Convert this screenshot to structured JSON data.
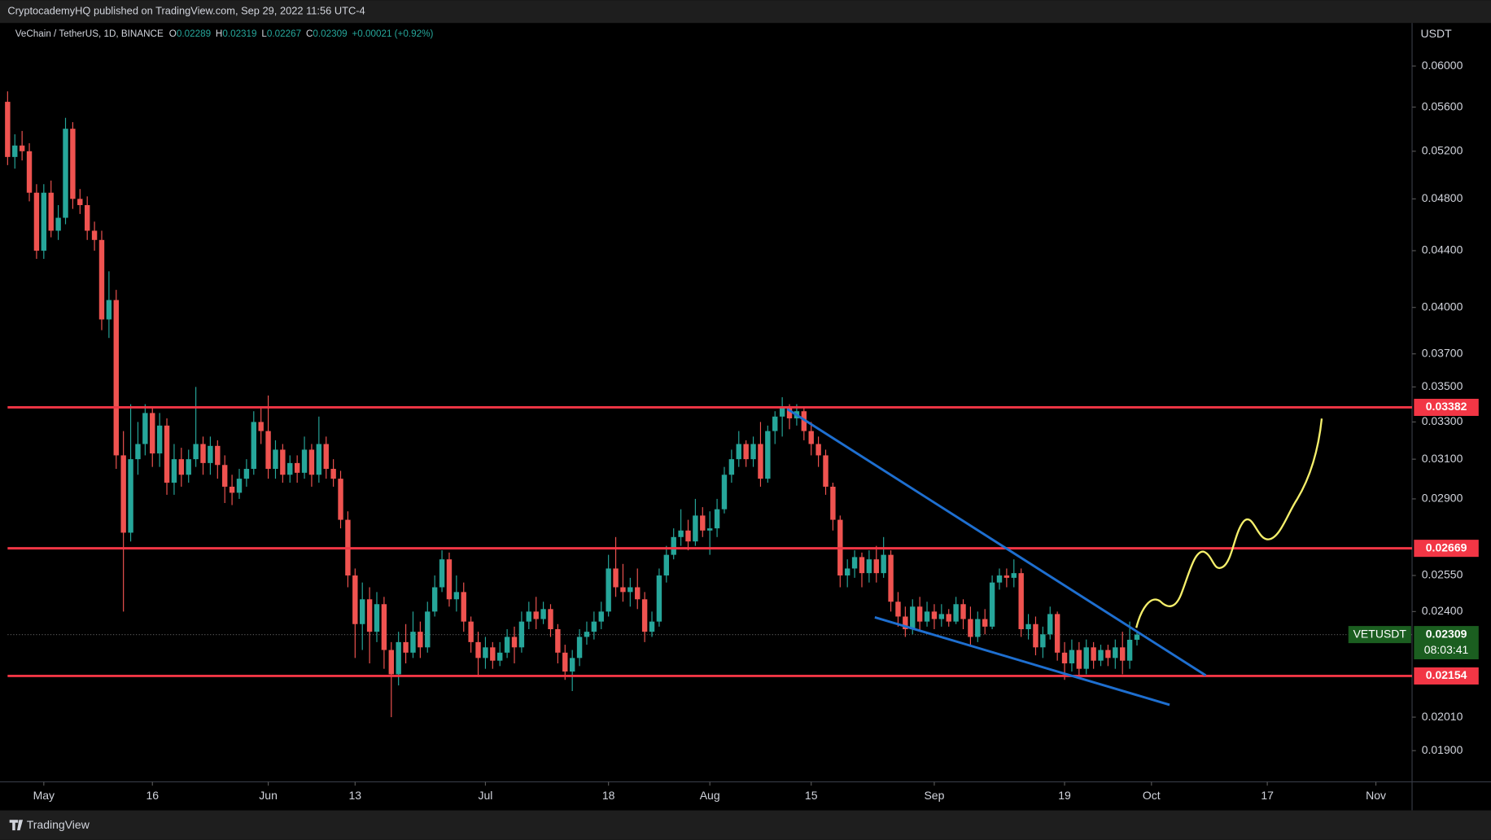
{
  "header": "CryptocademyHQ published on TradingView.com, Sep 29, 2022 11:56 UTC-4",
  "footer": "TradingView",
  "chart_data": {
    "type": "candlestick",
    "symbol": "VeChain / TetherUS, 1D, BINANCE",
    "legend_fields": [
      "O",
      "H",
      "L",
      "C"
    ],
    "change": "+0.00021 (+0.92%)",
    "price_unit": "USDT",
    "last_symbol": "VETUSDT",
    "countdown": "08:03:41",
    "up_color": "#26a69a",
    "down_color": "#ef5350",
    "level_color": "#f23645",
    "log_scale": true,
    "grid": false,
    "levels": [
      0.03382,
      0.02669,
      0.02154
    ],
    "xlim": [
      "2022-04-26",
      "2022-11-06"
    ],
    "xticks": [
      {
        "value": "2022-05-01",
        "label": "May"
      },
      {
        "value": "2022-05-16",
        "label": "16"
      },
      {
        "value": "2022-06-01",
        "label": "Jun"
      },
      {
        "value": "2022-06-13",
        "label": "13"
      },
      {
        "value": "2022-07-01",
        "label": "Jul"
      },
      {
        "value": "2022-07-18",
        "label": "18"
      },
      {
        "value": "2022-08-01",
        "label": "Aug"
      },
      {
        "value": "2022-08-15",
        "label": "15"
      },
      {
        "value": "2022-09-01",
        "label": "Sep"
      },
      {
        "value": "2022-09-19",
        "label": "19"
      },
      {
        "value": "2022-10-01",
        "label": "Oct"
      },
      {
        "value": "2022-10-17",
        "label": "17"
      },
      {
        "value": "2022-11-01",
        "label": "Nov"
      }
    ],
    "ylim": [
      0.01803,
      0.0645
    ],
    "yticks": [
      {
        "value": 0.06,
        "label": "0.06000"
      },
      {
        "value": 0.056,
        "label": "0.05600"
      },
      {
        "value": 0.052,
        "label": "0.05200"
      },
      {
        "value": 0.048,
        "label": "0.04800"
      },
      {
        "value": 0.044,
        "label": "0.04400"
      },
      {
        "value": 0.04,
        "label": "0.04000"
      },
      {
        "value": 0.037,
        "label": "0.03700"
      },
      {
        "value": 0.035,
        "label": "0.03500"
      },
      {
        "value": 0.033,
        "label": "0.03300"
      },
      {
        "value": 0.031,
        "label": "0.03100"
      },
      {
        "value": 0.029,
        "label": "0.02900"
      },
      {
        "value": 0.0255,
        "label": "0.02550"
      },
      {
        "value": 0.024,
        "label": "0.02400"
      },
      {
        "value": 0.0201,
        "label": "0.02010"
      },
      {
        "value": 0.019,
        "label": "0.01900"
      }
    ],
    "x": [
      "2022-04-26",
      "2022-04-27",
      "2022-04-28",
      "2022-04-29",
      "2022-04-30",
      "2022-05-01",
      "2022-05-02",
      "2022-05-03",
      "2022-05-04",
      "2022-05-05",
      "2022-05-06",
      "2022-05-07",
      "2022-05-08",
      "2022-05-09",
      "2022-05-10",
      "2022-05-11",
      "2022-05-12",
      "2022-05-13",
      "2022-05-14",
      "2022-05-15",
      "2022-05-16",
      "2022-05-17",
      "2022-05-18",
      "2022-05-19",
      "2022-05-20",
      "2022-05-21",
      "2022-05-22",
      "2022-05-23",
      "2022-05-24",
      "2022-05-25",
      "2022-05-26",
      "2022-05-27",
      "2022-05-28",
      "2022-05-29",
      "2022-05-30",
      "2022-05-31",
      "2022-06-01",
      "2022-06-02",
      "2022-06-03",
      "2022-06-04",
      "2022-06-05",
      "2022-06-06",
      "2022-06-07",
      "2022-06-08",
      "2022-06-09",
      "2022-06-10",
      "2022-06-11",
      "2022-06-12",
      "2022-06-13",
      "2022-06-14",
      "2022-06-15",
      "2022-06-16",
      "2022-06-17",
      "2022-06-18",
      "2022-06-19",
      "2022-06-20",
      "2022-06-21",
      "2022-06-22",
      "2022-06-23",
      "2022-06-24",
      "2022-06-25",
      "2022-06-26",
      "2022-06-27",
      "2022-06-28",
      "2022-06-29",
      "2022-06-30",
      "2022-07-01",
      "2022-07-02",
      "2022-07-03",
      "2022-07-04",
      "2022-07-05",
      "2022-07-06",
      "2022-07-07",
      "2022-07-08",
      "2022-07-09",
      "2022-07-10",
      "2022-07-11",
      "2022-07-12",
      "2022-07-13",
      "2022-07-14",
      "2022-07-15",
      "2022-07-16",
      "2022-07-17",
      "2022-07-18",
      "2022-07-19",
      "2022-07-20",
      "2022-07-21",
      "2022-07-22",
      "2022-07-23",
      "2022-07-24",
      "2022-07-25",
      "2022-07-26",
      "2022-07-27",
      "2022-07-28",
      "2022-07-29",
      "2022-07-30",
      "2022-07-31",
      "2022-08-01",
      "2022-08-02",
      "2022-08-03",
      "2022-08-04",
      "2022-08-05",
      "2022-08-06",
      "2022-08-07",
      "2022-08-08",
      "2022-08-09",
      "2022-08-10",
      "2022-08-11",
      "2022-08-12",
      "2022-08-13",
      "2022-08-14",
      "2022-08-15",
      "2022-08-16",
      "2022-08-17",
      "2022-08-18",
      "2022-08-19",
      "2022-08-20",
      "2022-08-21",
      "2022-08-22",
      "2022-08-23",
      "2022-08-24",
      "2022-08-25",
      "2022-08-26",
      "2022-08-27",
      "2022-08-28",
      "2022-08-29",
      "2022-08-30",
      "2022-08-31",
      "2022-09-01",
      "2022-09-02",
      "2022-09-03",
      "2022-09-04",
      "2022-09-05",
      "2022-09-06",
      "2022-09-07",
      "2022-09-08",
      "2022-09-09",
      "2022-09-10",
      "2022-09-11",
      "2022-09-12",
      "2022-09-13",
      "2022-09-14",
      "2022-09-15",
      "2022-09-16",
      "2022-09-17",
      "2022-09-18",
      "2022-09-19",
      "2022-09-20",
      "2022-09-21",
      "2022-09-22",
      "2022-09-23",
      "2022-09-24",
      "2022-09-25",
      "2022-09-26",
      "2022-09-27",
      "2022-09-28",
      "2022-09-29"
    ],
    "open": [
      0.0565,
      0.0515,
      0.0525,
      0.052,
      0.0485,
      0.044,
      0.0485,
      0.0455,
      0.0465,
      0.054,
      0.048,
      0.0475,
      0.0455,
      0.0448,
      0.0392,
      0.0405,
      0.0312,
      0.0274,
      0.031,
      0.0318,
      0.0335,
      0.0313,
      0.0328,
      0.0298,
      0.031,
      0.0302,
      0.031,
      0.0318,
      0.0308,
      0.0317,
      0.0307,
      0.0296,
      0.0293,
      0.03,
      0.0305,
      0.033,
      0.0325,
      0.0305,
      0.0315,
      0.0302,
      0.0308,
      0.0303,
      0.0315,
      0.0302,
      0.0318,
      0.0305,
      0.03,
      0.028,
      0.0255,
      0.0235,
      0.0245,
      0.0232,
      0.0243,
      0.0225,
      0.0216,
      0.0228,
      0.0224,
      0.0232,
      0.0226,
      0.024,
      0.025,
      0.0262,
      0.0245,
      0.0248,
      0.0236,
      0.0228,
      0.0222,
      0.0226,
      0.0221,
      0.0224,
      0.023,
      0.0226,
      0.0236,
      0.024,
      0.0237,
      0.0241,
      0.0233,
      0.0224,
      0.0217,
      0.0222,
      0.023,
      0.0232,
      0.0236,
      0.024,
      0.0258,
      0.025,
      0.0248,
      0.025,
      0.0245,
      0.0232,
      0.0236,
      0.0255,
      0.0264,
      0.0272,
      0.0275,
      0.027,
      0.0282,
      0.0275,
      0.0276,
      0.0285,
      0.0302,
      0.031,
      0.0318,
      0.031,
      0.0318,
      0.03,
      0.0325,
      0.0333,
      0.0338,
      0.0332,
      0.0336,
      0.0325,
      0.0318,
      0.0312,
      0.0296,
      0.028,
      0.0255,
      0.0258,
      0.0263,
      0.0256,
      0.0262,
      0.0256,
      0.0264,
      0.0244,
      0.0238,
      0.0233,
      0.0242,
      0.0236,
      0.024,
      0.0237,
      0.0239,
      0.0236,
      0.0243,
      0.0237,
      0.023,
      0.0237,
      0.0234,
      0.0252,
      0.0255,
      0.0254,
      0.0256,
      0.0233,
      0.0235,
      0.0226,
      0.0231,
      0.0239,
      0.0224,
      0.022,
      0.0225,
      0.0218,
      0.0226,
      0.0221,
      0.0225,
      0.0222,
      0.0226,
      0.0221,
      0.02289
    ],
    "high": [
      0.0575,
      0.0535,
      0.0538,
      0.0527,
      0.0492,
      0.0492,
      0.0495,
      0.0475,
      0.055,
      0.0546,
      0.0488,
      0.0482,
      0.0462,
      0.0455,
      0.0425,
      0.0412,
      0.0325,
      0.034,
      0.033,
      0.034,
      0.0338,
      0.0335,
      0.0332,
      0.0318,
      0.0316,
      0.0315,
      0.035,
      0.0322,
      0.0322,
      0.032,
      0.0312,
      0.0302,
      0.0305,
      0.031,
      0.0336,
      0.0338,
      0.0345,
      0.032,
      0.0318,
      0.0312,
      0.0312,
      0.0322,
      0.0318,
      0.0333,
      0.0322,
      0.031,
      0.0304,
      0.0284,
      0.0258,
      0.0252,
      0.025,
      0.0248,
      0.0246,
      0.0228,
      0.0232,
      0.0235,
      0.024,
      0.0236,
      0.0244,
      0.0255,
      0.0266,
      0.0265,
      0.0255,
      0.0252,
      0.0238,
      0.0232,
      0.023,
      0.0228,
      0.0228,
      0.0233,
      0.0234,
      0.024,
      0.0244,
      0.0246,
      0.0244,
      0.0243,
      0.0235,
      0.0227,
      0.0225,
      0.0233,
      0.0236,
      0.024,
      0.0244,
      0.0264,
      0.0272,
      0.026,
      0.0254,
      0.0258,
      0.0248,
      0.024,
      0.0258,
      0.0268,
      0.0276,
      0.0285,
      0.028,
      0.029,
      0.0286,
      0.0284,
      0.029,
      0.0306,
      0.0315,
      0.0325,
      0.032,
      0.0322,
      0.033,
      0.0328,
      0.0336,
      0.0344,
      0.034,
      0.034,
      0.0338,
      0.033,
      0.0322,
      0.0315,
      0.0298,
      0.0282,
      0.0262,
      0.0266,
      0.0265,
      0.0266,
      0.0268,
      0.0272,
      0.0266,
      0.0248,
      0.0242,
      0.0245,
      0.0246,
      0.0244,
      0.0243,
      0.0243,
      0.0241,
      0.0246,
      0.0245,
      0.0242,
      0.024,
      0.0241,
      0.0255,
      0.0258,
      0.0258,
      0.0262,
      0.0258,
      0.0239,
      0.0238,
      0.0234,
      0.0242,
      0.024,
      0.0228,
      0.0229,
      0.0228,
      0.0229,
      0.0228,
      0.0227,
      0.0227,
      0.0229,
      0.0232,
      0.0236,
      0.02319
    ],
    "low": [
      0.0508,
      0.0505,
      0.0512,
      0.0478,
      0.0434,
      0.0434,
      0.045,
      0.0448,
      0.046,
      0.0472,
      0.0468,
      0.0448,
      0.044,
      0.0385,
      0.038,
      0.0305,
      0.024,
      0.027,
      0.0302,
      0.0312,
      0.0306,
      0.0306,
      0.0292,
      0.0292,
      0.0296,
      0.0298,
      0.0306,
      0.0302,
      0.0302,
      0.03,
      0.0288,
      0.0287,
      0.029,
      0.0296,
      0.0302,
      0.0318,
      0.03,
      0.03,
      0.0298,
      0.0298,
      0.0298,
      0.03,
      0.0296,
      0.0298,
      0.03,
      0.0296,
      0.0276,
      0.025,
      0.0222,
      0.0225,
      0.022,
      0.0228,
      0.0218,
      0.0201,
      0.0212,
      0.022,
      0.0222,
      0.0222,
      0.0224,
      0.0238,
      0.0248,
      0.0242,
      0.024,
      0.0232,
      0.0224,
      0.0215,
      0.0218,
      0.0218,
      0.0219,
      0.0222,
      0.022,
      0.0224,
      0.0233,
      0.0233,
      0.0235,
      0.023,
      0.022,
      0.0214,
      0.021,
      0.0219,
      0.0227,
      0.0229,
      0.0233,
      0.0238,
      0.0246,
      0.0244,
      0.0242,
      0.0241,
      0.0228,
      0.023,
      0.0234,
      0.0252,
      0.0262,
      0.0268,
      0.0266,
      0.0268,
      0.0272,
      0.0264,
      0.0272,
      0.0283,
      0.0298,
      0.0306,
      0.0306,
      0.0306,
      0.0296,
      0.0298,
      0.0318,
      0.0322,
      0.0326,
      0.0328,
      0.032,
      0.0312,
      0.0306,
      0.0292,
      0.0275,
      0.025,
      0.025,
      0.0254,
      0.025,
      0.0252,
      0.0252,
      0.0254,
      0.024,
      0.0234,
      0.023,
      0.0231,
      0.0232,
      0.0234,
      0.0233,
      0.0234,
      0.0234,
      0.0235,
      0.0233,
      0.0227,
      0.0228,
      0.0231,
      0.0233,
      0.0249,
      0.025,
      0.025,
      0.023,
      0.0229,
      0.0223,
      0.0222,
      0.0229,
      0.0221,
      0.0214,
      0.0217,
      0.0215,
      0.0216,
      0.0218,
      0.0219,
      0.0219,
      0.0218,
      0.0216,
      0.0218,
      0.02267
    ],
    "close": [
      0.0515,
      0.0525,
      0.052,
      0.0485,
      0.044,
      0.0485,
      0.0455,
      0.0465,
      0.054,
      0.048,
      0.0475,
      0.0455,
      0.0448,
      0.0392,
      0.0405,
      0.0312,
      0.0274,
      0.031,
      0.0318,
      0.0335,
      0.0313,
      0.0328,
      0.0298,
      0.031,
      0.0302,
      0.031,
      0.0318,
      0.0308,
      0.0317,
      0.0307,
      0.0296,
      0.0293,
      0.03,
      0.0305,
      0.033,
      0.0325,
      0.0305,
      0.0315,
      0.0302,
      0.0308,
      0.0303,
      0.0315,
      0.0302,
      0.0318,
      0.0305,
      0.03,
      0.028,
      0.0255,
      0.0235,
      0.0245,
      0.0232,
      0.0243,
      0.0225,
      0.0216,
      0.0228,
      0.0224,
      0.0232,
      0.0226,
      0.024,
      0.025,
      0.0262,
      0.0245,
      0.0248,
      0.0236,
      0.0228,
      0.0222,
      0.0226,
      0.0221,
      0.0224,
      0.023,
      0.0226,
      0.0236,
      0.024,
      0.0237,
      0.0241,
      0.0233,
      0.0224,
      0.0217,
      0.0222,
      0.023,
      0.0232,
      0.0236,
      0.024,
      0.0258,
      0.025,
      0.0248,
      0.025,
      0.0245,
      0.0232,
      0.0236,
      0.0255,
      0.0264,
      0.0272,
      0.0275,
      0.027,
      0.0282,
      0.0275,
      0.0276,
      0.0285,
      0.0302,
      0.031,
      0.0318,
      0.031,
      0.0318,
      0.03,
      0.0325,
      0.0333,
      0.0338,
      0.0332,
      0.0336,
      0.0325,
      0.0318,
      0.0312,
      0.0296,
      0.028,
      0.0255,
      0.0258,
      0.0263,
      0.0256,
      0.0262,
      0.0256,
      0.0264,
      0.0244,
      0.0238,
      0.0233,
      0.0242,
      0.0236,
      0.024,
      0.0237,
      0.0239,
      0.0236,
      0.0243,
      0.0237,
      0.023,
      0.0237,
      0.0234,
      0.0252,
      0.0255,
      0.0254,
      0.0256,
      0.0233,
      0.0235,
      0.0226,
      0.0231,
      0.0239,
      0.0224,
      0.022,
      0.0225,
      0.0218,
      0.0226,
      0.0221,
      0.0225,
      0.0222,
      0.0226,
      0.0221,
      0.02289,
      0.02309
    ]
  }
}
